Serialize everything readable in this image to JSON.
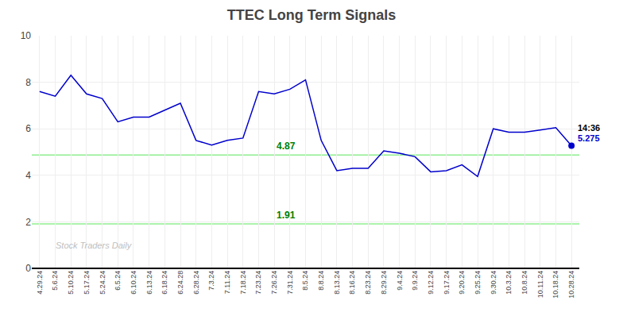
{
  "chart_data": {
    "type": "line",
    "title": "TTEC Long Term Signals",
    "categories": [
      "4.29.24",
      "5.6.24",
      "5.10.24",
      "5.17.24",
      "5.24.24",
      "6.5.24",
      "6.10.24",
      "6.13.24",
      "6.18.24",
      "6.24.28",
      "6.28.24",
      "7.3.24",
      "7.11.24",
      "7.18.24",
      "7.23.24",
      "7.26.24",
      "7.31.24",
      "8.5.24",
      "8.8.24",
      "8.13.24",
      "8.16.24",
      "8.23.24",
      "8.29.24",
      "9.4.24",
      "9.9.24",
      "9.12.24",
      "9.17.24",
      "9.20.24",
      "9.25.24",
      "9.30.24",
      "10.3.24",
      "10.8.24",
      "10.11.24",
      "10.18.24",
      "10.28.24"
    ],
    "values": [
      7.6,
      7.4,
      8.3,
      7.5,
      7.3,
      6.3,
      6.5,
      6.5,
      6.8,
      7.1,
      5.5,
      5.3,
      5.5,
      5.6,
      7.6,
      7.5,
      7.7,
      8.1,
      5.5,
      4.2,
      4.3,
      4.3,
      5.05,
      4.95,
      4.8,
      4.15,
      4.2,
      4.45,
      3.95,
      6.0,
      5.85,
      5.85,
      5.95,
      6.05,
      5.275
    ],
    "color": "#0000cc",
    "ylim": [
      0,
      10
    ],
    "yticks": [
      0,
      2,
      4,
      6,
      8,
      10
    ],
    "grid": true,
    "reference_lines": [
      {
        "value": 4.87,
        "label": "4.87",
        "color": "#90EE90"
      },
      {
        "value": 1.91,
        "label": "1.91",
        "color": "#90EE90"
      }
    ],
    "last_point": {
      "value": 5.275,
      "label": "14:36",
      "color": "#0000cc"
    },
    "watermark": "Stock Traders Daily"
  }
}
